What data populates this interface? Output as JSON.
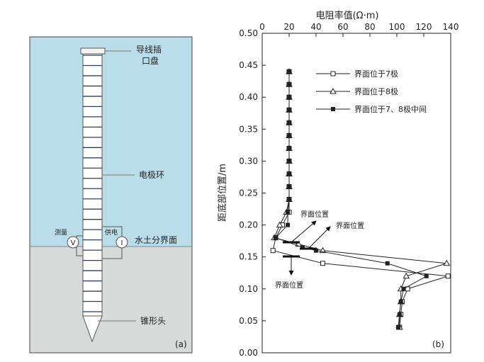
{
  "panel_a": {
    "label": "(a)",
    "callouts": {
      "plug_line1": "导线插",
      "plug_line2": "口盘",
      "electrode_ring": "电极环",
      "interface": "水土分界面",
      "cone": "锥形头",
      "measure": "测量",
      "power": "供电",
      "v_symbol": "V",
      "i_symbol": "I"
    },
    "colors": {
      "water": "#b9dde9",
      "soil": "#d8d9d9",
      "probe": "#ffffff",
      "outline": "#555555"
    },
    "ring_count": 26
  },
  "panel_b": {
    "label": "(b)",
    "annotations": [
      "界面位置",
      "界面位置",
      "界面位置"
    ]
  },
  "chart_data": {
    "type": "line",
    "xlabel": "电阻率值(Ω·m)",
    "ylabel": "距底部位置/m",
    "xlim": [
      0,
      140
    ],
    "ylim": [
      0,
      0.5
    ],
    "x_ticks": [
      "0",
      "20",
      "40",
      "60",
      "80",
      "100",
      "120",
      "140"
    ],
    "y_ticks": [
      "0.00",
      "0.05",
      "0.10",
      "0.15",
      "0.20",
      "0.25",
      "0.30",
      "0.35",
      "0.40",
      "0.45",
      "0.50"
    ],
    "x_axis_position": "top",
    "legend_position": "top-right",
    "series": [
      {
        "name": "界面位于7极",
        "marker": "open-square",
        "points": [
          [
            20,
            0.44
          ],
          [
            20,
            0.42
          ],
          [
            20,
            0.4
          ],
          [
            20,
            0.38
          ],
          [
            20,
            0.36
          ],
          [
            20,
            0.34
          ],
          [
            20,
            0.32
          ],
          [
            20,
            0.3
          ],
          [
            20,
            0.28
          ],
          [
            20,
            0.26
          ],
          [
            20,
            0.24
          ],
          [
            20,
            0.22
          ],
          [
            15,
            0.2
          ],
          [
            10,
            0.18
          ],
          [
            8,
            0.16
          ],
          [
            45,
            0.14
          ],
          [
            138,
            0.12
          ],
          [
            108,
            0.1
          ],
          [
            104,
            0.08
          ],
          [
            103,
            0.06
          ],
          [
            102,
            0.04
          ]
        ]
      },
      {
        "name": "界面位于8极",
        "marker": "open-triangle",
        "points": [
          [
            20,
            0.44
          ],
          [
            20,
            0.42
          ],
          [
            20,
            0.4
          ],
          [
            20,
            0.38
          ],
          [
            20,
            0.36
          ],
          [
            20,
            0.34
          ],
          [
            20,
            0.32
          ],
          [
            20,
            0.3
          ],
          [
            20,
            0.28
          ],
          [
            20,
            0.26
          ],
          [
            20,
            0.24
          ],
          [
            18,
            0.22
          ],
          [
            13,
            0.2
          ],
          [
            9,
            0.18
          ],
          [
            27,
            0.17
          ],
          [
            45,
            0.16
          ],
          [
            137,
            0.14
          ],
          [
            107,
            0.12
          ],
          [
            103,
            0.1
          ],
          [
            103,
            0.08
          ],
          [
            102,
            0.06
          ],
          [
            102,
            0.04
          ]
        ]
      },
      {
        "name": "界面位于7、8极中间",
        "marker": "filled-square",
        "points": [
          [
            20,
            0.44
          ],
          [
            20,
            0.42
          ],
          [
            20,
            0.4
          ],
          [
            20,
            0.38
          ],
          [
            20,
            0.36
          ],
          [
            20,
            0.34
          ],
          [
            20,
            0.32
          ],
          [
            20,
            0.3
          ],
          [
            20,
            0.28
          ],
          [
            20,
            0.26
          ],
          [
            20,
            0.24
          ],
          [
            19,
            0.22
          ],
          [
            19,
            0.2
          ],
          [
            10,
            0.18
          ],
          [
            30,
            0.165
          ],
          [
            40,
            0.16
          ],
          [
            93,
            0.14
          ],
          [
            122,
            0.12
          ],
          [
            105,
            0.1
          ],
          [
            103,
            0.08
          ],
          [
            102,
            0.06
          ],
          [
            101,
            0.04
          ]
        ]
      }
    ]
  }
}
